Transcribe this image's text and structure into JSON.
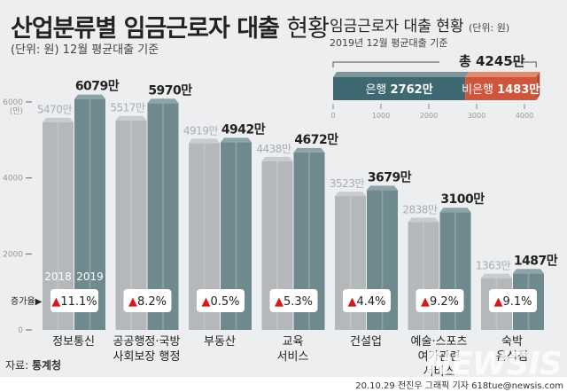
{
  "title": {
    "main": "산업분류별 임금근로자 대출",
    "light": "현황"
  },
  "subtitle": "(단위: 원) 12월 평균대출 기준",
  "source": {
    "label": "자료:",
    "name": "통계청"
  },
  "credit": "20.10.29 전진우 그래픽 기자 618tue@newsis.com",
  "watermark": "NEWSIS",
  "colors": {
    "background": "#eceef0",
    "bar_2018": "#b4b8bb",
    "bar_2019": "#6f8a8f",
    "up_arrow": "#d7191c",
    "bank": "#3e6972",
    "nonbank": "#d0553a"
  },
  "chart_data": [
    {
      "type": "bar",
      "categories": [
        "정보통신",
        "공공행정·국방 사회보장 행정",
        "부동산",
        "교육 서비스",
        "건설업",
        "예술·스포츠 여가관련 서비스",
        "숙박 음식점"
      ],
      "category_lines": [
        [
          "정보통신"
        ],
        [
          "공공행정·국방",
          "사회보장 행정"
        ],
        [
          "부동산"
        ],
        [
          "교육",
          "서비스"
        ],
        [
          "건설업"
        ],
        [
          "예술·스포츠",
          "여가관련",
          "서비스"
        ],
        [
          "숙박",
          "음식점"
        ]
      ],
      "series": [
        {
          "name": "2018",
          "values": [
            5470,
            5517,
            4919,
            4438,
            3523,
            2838,
            1363
          ],
          "labels": [
            "5470만",
            "5517만",
            "4919만",
            "4438만",
            "3523만",
            "2838만",
            "1363만"
          ]
        },
        {
          "name": "2019",
          "values": [
            6079,
            5970,
            4942,
            4672,
            3679,
            3100,
            1487
          ],
          "labels": [
            "6079만",
            "5970만",
            "4942만",
            "4672만",
            "3679만",
            "3100만",
            "1487만"
          ]
        }
      ],
      "growth_label": "증가율▶",
      "growth": [
        "▲11.1%",
        "▲8.2%",
        "▲0.5%",
        "▲5.3%",
        "▲4.4%",
        "▲9.2%",
        "▲9.1%"
      ],
      "yticks": [
        "0",
        "2000",
        "4000",
        "6000"
      ],
      "yunit": "(만)",
      "ylim": [
        0,
        6000
      ],
      "grid": false,
      "legend_placement": "inside first group"
    },
    {
      "type": "bar",
      "orientation": "horizontal-stacked",
      "title": "임금근로자 대출 현황",
      "unit": "(단위: 원)",
      "subtitle": "2019년 12월 평균대출 기준",
      "total_label": "총 4245만",
      "total": 4245,
      "series": [
        {
          "name": "은행",
          "value": 2762,
          "label": "2762만"
        },
        {
          "name": "비은행",
          "value": 1483,
          "label": "1483만"
        }
      ],
      "xticks": [
        "0",
        "1000",
        "2000",
        "3000",
        "4000"
      ],
      "xlim": [
        0,
        4500
      ]
    }
  ]
}
